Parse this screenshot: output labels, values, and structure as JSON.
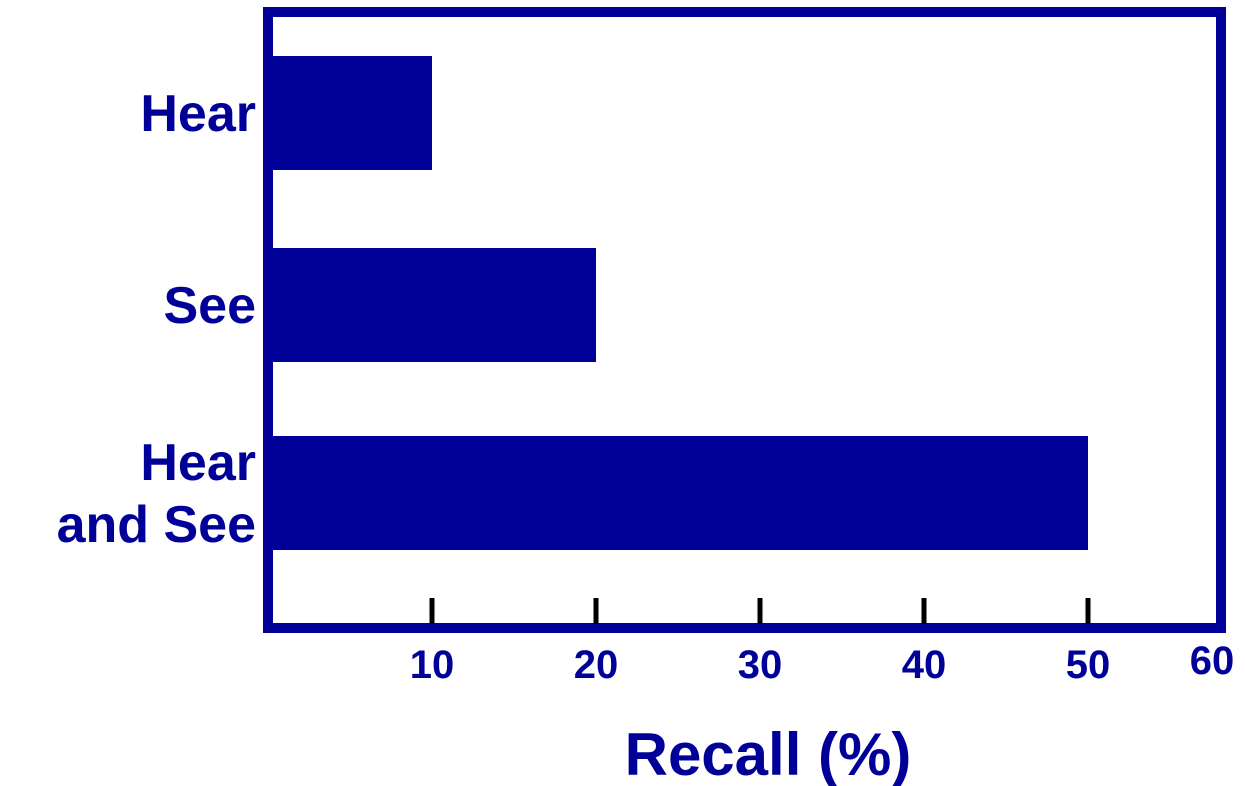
{
  "chart_data": {
    "type": "bar",
    "orientation": "horizontal",
    "categories": [
      [
        "Hear"
      ],
      [
        "See"
      ],
      [
        "Hear",
        "and See"
      ]
    ],
    "values": [
      10,
      20,
      50
    ],
    "xlabel": "Recall (%)",
    "ylabel": "",
    "title": "",
    "xlim": [
      0,
      60
    ],
    "xticks": [
      10,
      20,
      30,
      40,
      50,
      60
    ],
    "grid": false,
    "legend": "none",
    "colors": {
      "bar": "#000099",
      "frame": "#000099",
      "ticks": "#000000",
      "text": "#000099"
    }
  }
}
